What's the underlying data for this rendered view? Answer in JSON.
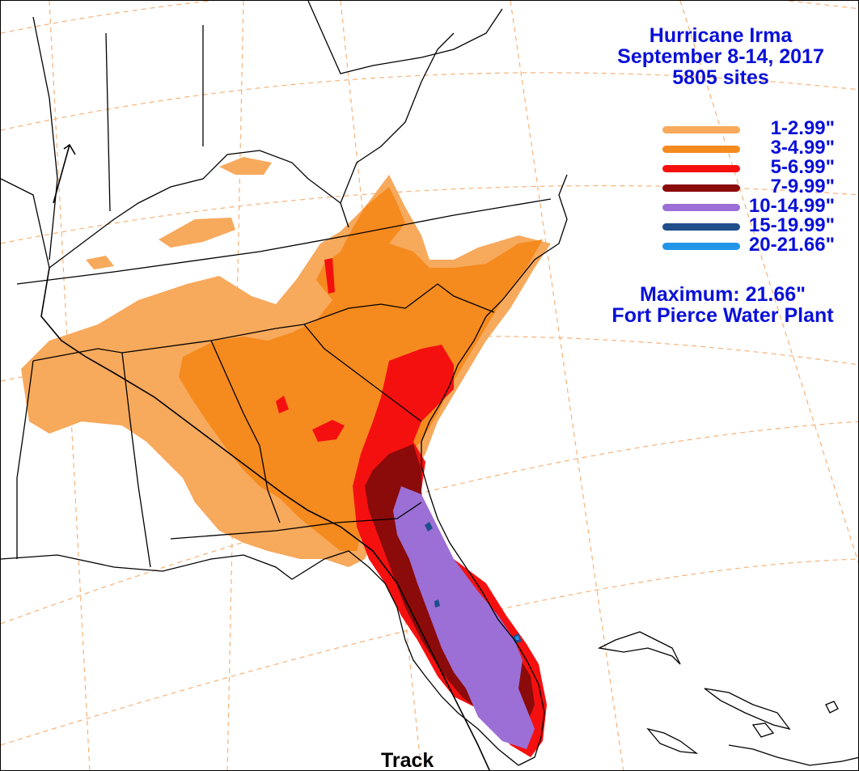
{
  "title": {
    "line1": "Hurricane Irma",
    "line2": "September 8-14, 2017",
    "line3": "5805 sites"
  },
  "legend": {
    "items": [
      {
        "label": "1-2.99\"",
        "color": "#F7A95C"
      },
      {
        "label": "3-4.99\"",
        "color": "#F58A1E"
      },
      {
        "label": "5-6.99\"",
        "color": "#F51010"
      },
      {
        "label": "7-9.99\"",
        "color": "#8B0A0A"
      },
      {
        "label": "10-14.99\"",
        "color": "#9B6FD6"
      },
      {
        "label": "15-19.99\"",
        "color": "#1F4E8A"
      },
      {
        "label": "20-21.66\"",
        "color": "#2196E8"
      }
    ]
  },
  "maximum": {
    "value_line": "Maximum: 21.66\"",
    "site_line": "Fort Pierce Water Plant"
  },
  "track_label": "Track",
  "colors": {
    "text": "#0A10D8",
    "border": "#000000",
    "grid": "#F5B37A"
  }
}
